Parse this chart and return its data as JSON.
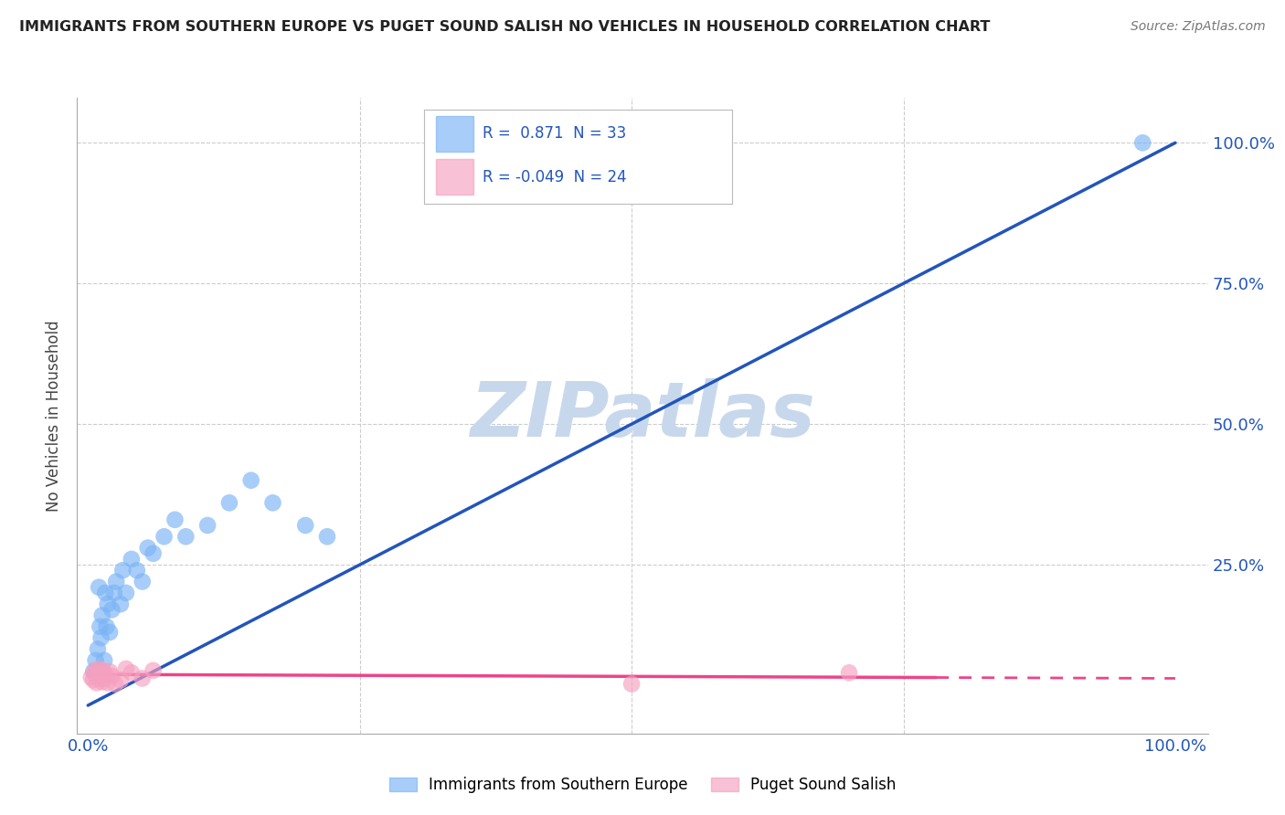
{
  "title": "IMMIGRANTS FROM SOUTHERN EUROPE VS PUGET SOUND SALISH NO VEHICLES IN HOUSEHOLD CORRELATION CHART",
  "source": "Source: ZipAtlas.com",
  "ylabel": "No Vehicles in Household",
  "blue_label": "Immigrants from Southern Europe",
  "pink_label": "Puget Sound Salish",
  "blue_R": 0.871,
  "blue_N": 33,
  "pink_R": -0.049,
  "pink_N": 24,
  "xlim": [
    -0.01,
    1.03
  ],
  "ylim": [
    -0.05,
    1.08
  ],
  "ytick_vals": [
    0.0,
    0.25,
    0.5,
    0.75,
    1.0
  ],
  "ytick_labels": [
    "",
    "25.0%",
    "50.0%",
    "75.0%",
    "100.0%"
  ],
  "xtick_vals": [
    0.0,
    0.25,
    0.5,
    0.75,
    1.0
  ],
  "xtick_labels": [
    "0.0%",
    "",
    "",
    "",
    "100.0%"
  ],
  "grid_color": "#cccccc",
  "background_color": "#ffffff",
  "blue_x": [
    0.005,
    0.007,
    0.009,
    0.01,
    0.011,
    0.012,
    0.013,
    0.015,
    0.016,
    0.017,
    0.018,
    0.02,
    0.022,
    0.024,
    0.026,
    0.03,
    0.032,
    0.035,
    0.04,
    0.045,
    0.05,
    0.055,
    0.06,
    0.07,
    0.08,
    0.09,
    0.11,
    0.13,
    0.15,
    0.17,
    0.2,
    0.22,
    0.97
  ],
  "blue_y": [
    0.06,
    0.08,
    0.1,
    0.21,
    0.14,
    0.12,
    0.16,
    0.08,
    0.2,
    0.14,
    0.18,
    0.13,
    0.17,
    0.2,
    0.22,
    0.18,
    0.24,
    0.2,
    0.26,
    0.24,
    0.22,
    0.28,
    0.27,
    0.3,
    0.33,
    0.3,
    0.32,
    0.36,
    0.4,
    0.36,
    0.32,
    0.3,
    1.0
  ],
  "pink_x": [
    0.003,
    0.005,
    0.006,
    0.007,
    0.008,
    0.009,
    0.01,
    0.011,
    0.012,
    0.013,
    0.014,
    0.015,
    0.016,
    0.018,
    0.02,
    0.022,
    0.025,
    0.03,
    0.035,
    0.04,
    0.05,
    0.06,
    0.5,
    0.7
  ],
  "pink_y": [
    0.05,
    0.045,
    0.06,
    0.055,
    0.04,
    0.065,
    0.052,
    0.048,
    0.058,
    0.042,
    0.062,
    0.048,
    0.055,
    0.04,
    0.06,
    0.052,
    0.038,
    0.045,
    0.065,
    0.058,
    0.048,
    0.062,
    0.038,
    0.058
  ],
  "blue_color": "#7ab3f5",
  "pink_color": "#f5a0bf",
  "blue_line_color": "#2255bb",
  "pink_line_color": "#ee4488",
  "pink_line_dash_start": 0.78,
  "blue_line_x0": 0.0,
  "blue_line_y0": 0.0,
  "blue_line_x1": 1.0,
  "blue_line_y1": 1.0,
  "pink_line_x0": 0.0,
  "pink_line_y0": 0.055,
  "pink_line_x1": 1.0,
  "pink_line_y1": 0.048,
  "marker_size": 180,
  "watermark_text": "ZIPatlas",
  "watermark_color": "#c8d8ec",
  "legend_blue_text": "R =  0.871  N = 33",
  "legend_pink_text": "R = -0.049  N = 24"
}
